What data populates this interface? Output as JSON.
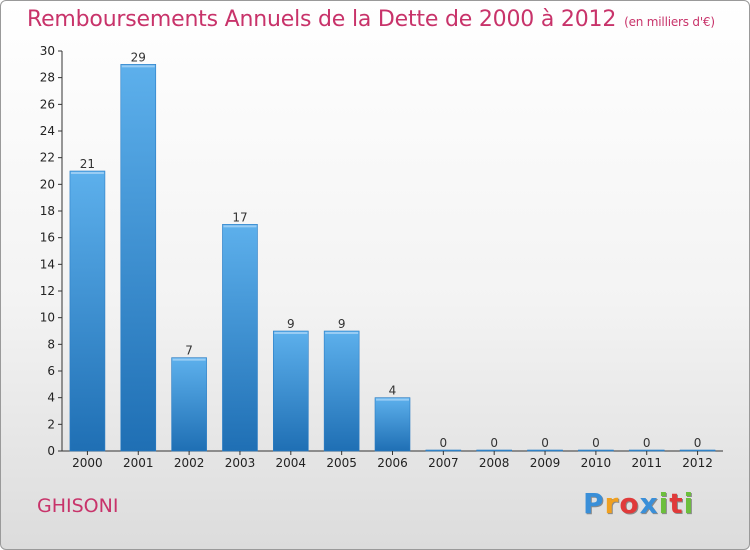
{
  "header": {
    "title": "Remboursements Annuels de la Dette de 2000 à 2012",
    "unit": "(en milliers d'€)"
  },
  "footer": {
    "commune": "GHISONI",
    "logo": {
      "letters": [
        "P",
        "r",
        "o",
        "x",
        "i",
        "t",
        "i"
      ],
      "colors": [
        "#3a8fd8",
        "#f0a020",
        "#e03a3a",
        "#3a8fd8",
        "#6cbf3c",
        "#e03a3a",
        "#6cbf3c"
      ]
    }
  },
  "chart_data": {
    "type": "bar",
    "title": "Remboursements Annuels de la Dette de 2000 à 2012",
    "subtitle": "(en milliers d'€)",
    "categories": [
      "2000",
      "2001",
      "2002",
      "2003",
      "2004",
      "2005",
      "2006",
      "2007",
      "2008",
      "2009",
      "2010",
      "2011",
      "2012"
    ],
    "values": [
      21,
      29,
      7,
      17,
      9,
      9,
      4,
      0,
      0,
      0,
      0,
      0,
      0
    ],
    "value_labels": [
      "21",
      "29",
      "7",
      "17",
      "9",
      "9",
      "4",
      "0",
      "0",
      "0",
      "0",
      "0",
      "0"
    ],
    "yticks": [
      "0",
      "2",
      "4",
      "6",
      "8",
      "10",
      "12",
      "14",
      "16",
      "18",
      "20",
      "22",
      "24",
      "26",
      "28",
      "30"
    ],
    "ylim": [
      0,
      30
    ],
    "grid": false,
    "bar_color": "#4a9fe0"
  }
}
